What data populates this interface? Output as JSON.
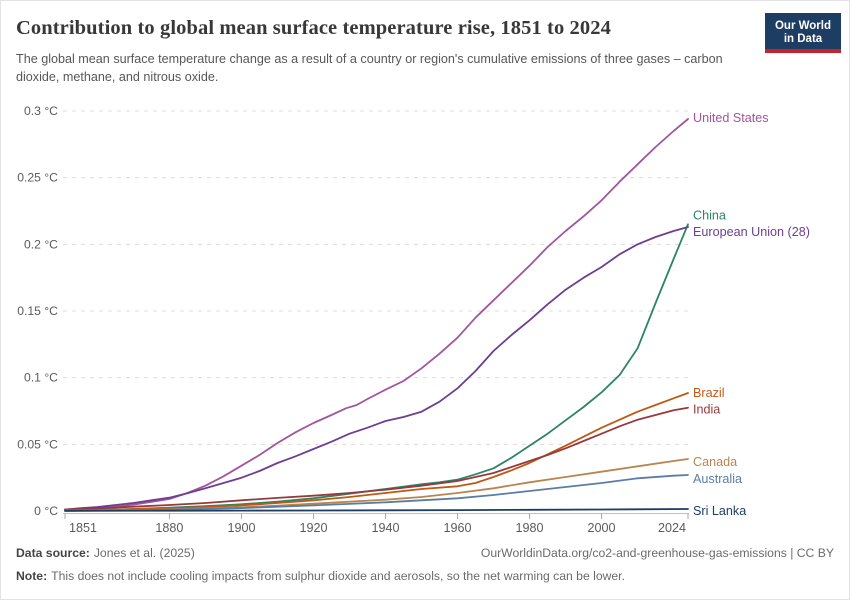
{
  "header": {
    "title": "Contribution to global mean surface temperature rise, 1851 to 2024",
    "subtitle": "The global mean surface temperature change as a result of a country or region's cumulative emissions of three gases – carbon dioxide, methane, and nitrous oxide."
  },
  "logo": {
    "line1": "Our World",
    "line2": "in Data",
    "bg_color": "#1d3d63",
    "bar_color": "#c0262d"
  },
  "chart_data": {
    "type": "line",
    "title": "Contribution to global mean surface temperature rise, 1851 to 2024",
    "xlabel": "",
    "ylabel": "",
    "unit": "°C",
    "xlim": [
      1851,
      2024
    ],
    "ylim": [
      0,
      0.3
    ],
    "grid": "horizontal-dashed",
    "legend_position": "right-of-line-ends",
    "x_ticks": [
      1851,
      1880,
      1900,
      1920,
      1940,
      1960,
      1980,
      2000,
      2024
    ],
    "y_ticks": [
      {
        "value": 0,
        "label": "0 °C"
      },
      {
        "value": 0.05,
        "label": "0.05 °C"
      },
      {
        "value": 0.1,
        "label": "0.1 °C"
      },
      {
        "value": 0.15,
        "label": "0.15 °C"
      },
      {
        "value": 0.2,
        "label": "0.2 °C"
      },
      {
        "value": 0.25,
        "label": "0.25 °C"
      },
      {
        "value": 0.3,
        "label": "0.3 °C"
      }
    ],
    "series": [
      {
        "name": "United States",
        "color": "#a2559c",
        "points": [
          [
            1851,
            0.0005
          ],
          [
            1855,
            0.0012
          ],
          [
            1860,
            0.002
          ],
          [
            1865,
            0.0032
          ],
          [
            1870,
            0.0048
          ],
          [
            1875,
            0.0068
          ],
          [
            1880,
            0.009
          ],
          [
            1885,
            0.0135
          ],
          [
            1890,
            0.019
          ],
          [
            1895,
            0.026
          ],
          [
            1900,
            0.034
          ],
          [
            1905,
            0.042
          ],
          [
            1910,
            0.051
          ],
          [
            1915,
            0.059
          ],
          [
            1920,
            0.066
          ],
          [
            1925,
            0.072
          ],
          [
            1929,
            0.077
          ],
          [
            1932,
            0.0795
          ],
          [
            1935,
            0.084
          ],
          [
            1940,
            0.091
          ],
          [
            1945,
            0.0975
          ],
          [
            1950,
            0.107
          ],
          [
            1955,
            0.118
          ],
          [
            1960,
            0.13
          ],
          [
            1965,
            0.145
          ],
          [
            1970,
            0.158
          ],
          [
            1975,
            0.171
          ],
          [
            1980,
            0.184
          ],
          [
            1985,
            0.198
          ],
          [
            1990,
            0.21
          ],
          [
            1995,
            0.221
          ],
          [
            2000,
            0.233
          ],
          [
            2005,
            0.247
          ],
          [
            2010,
            0.26
          ],
          [
            2015,
            0.273
          ],
          [
            2020,
            0.285
          ],
          [
            2024,
            0.294
          ]
        ]
      },
      {
        "name": "China",
        "color": "#2c8465",
        "points": [
          [
            1851,
            0.0003
          ],
          [
            1860,
            0.0008
          ],
          [
            1870,
            0.0015
          ],
          [
            1880,
            0.0025
          ],
          [
            1890,
            0.0036
          ],
          [
            1900,
            0.005
          ],
          [
            1910,
            0.007
          ],
          [
            1920,
            0.0095
          ],
          [
            1930,
            0.013
          ],
          [
            1940,
            0.0165
          ],
          [
            1950,
            0.02
          ],
          [
            1955,
            0.0215
          ],
          [
            1960,
            0.0235
          ],
          [
            1965,
            0.0275
          ],
          [
            1970,
            0.032
          ],
          [
            1975,
            0.04
          ],
          [
            1980,
            0.049
          ],
          [
            1985,
            0.058
          ],
          [
            1990,
            0.068
          ],
          [
            1995,
            0.078
          ],
          [
            2000,
            0.089
          ],
          [
            2005,
            0.102
          ],
          [
            2010,
            0.122
          ],
          [
            2015,
            0.156
          ],
          [
            2020,
            0.189
          ],
          [
            2024,
            0.215
          ]
        ]
      },
      {
        "name": "European Union (28)",
        "color": "#6d3e91",
        "points": [
          [
            1851,
            0.001
          ],
          [
            1855,
            0.002
          ],
          [
            1860,
            0.003
          ],
          [
            1865,
            0.0045
          ],
          [
            1870,
            0.006
          ],
          [
            1875,
            0.008
          ],
          [
            1880,
            0.01
          ],
          [
            1885,
            0.0133
          ],
          [
            1890,
            0.017
          ],
          [
            1895,
            0.021
          ],
          [
            1900,
            0.025
          ],
          [
            1905,
            0.03
          ],
          [
            1910,
            0.036
          ],
          [
            1915,
            0.041
          ],
          [
            1920,
            0.0465
          ],
          [
            1925,
            0.052
          ],
          [
            1930,
            0.058
          ],
          [
            1935,
            0.0625
          ],
          [
            1940,
            0.0675
          ],
          [
            1945,
            0.0705
          ],
          [
            1950,
            0.0745
          ],
          [
            1955,
            0.082
          ],
          [
            1960,
            0.092
          ],
          [
            1965,
            0.105
          ],
          [
            1970,
            0.12
          ],
          [
            1975,
            0.132
          ],
          [
            1980,
            0.143
          ],
          [
            1985,
            0.155
          ],
          [
            1990,
            0.166
          ],
          [
            1995,
            0.175
          ],
          [
            2000,
            0.183
          ],
          [
            2005,
            0.1925
          ],
          [
            2010,
            0.2
          ],
          [
            2015,
            0.2055
          ],
          [
            2020,
            0.21
          ],
          [
            2024,
            0.213
          ]
        ]
      },
      {
        "name": "Brazil",
        "color": "#be5915",
        "points": [
          [
            1851,
            0.0004
          ],
          [
            1860,
            0.0008
          ],
          [
            1870,
            0.0014
          ],
          [
            1880,
            0.002
          ],
          [
            1890,
            0.003
          ],
          [
            1900,
            0.0042
          ],
          [
            1910,
            0.006
          ],
          [
            1920,
            0.008
          ],
          [
            1930,
            0.0105
          ],
          [
            1940,
            0.0135
          ],
          [
            1950,
            0.0165
          ],
          [
            1960,
            0.0185
          ],
          [
            1965,
            0.021
          ],
          [
            1970,
            0.0255
          ],
          [
            1975,
            0.0305
          ],
          [
            1980,
            0.036
          ],
          [
            1985,
            0.0425
          ],
          [
            1990,
            0.049
          ],
          [
            1995,
            0.0557
          ],
          [
            2000,
            0.0625
          ],
          [
            2005,
            0.0685
          ],
          [
            2010,
            0.0745
          ],
          [
            2015,
            0.0795
          ],
          [
            2020,
            0.0845
          ],
          [
            2024,
            0.0885
          ]
        ]
      },
      {
        "name": "India",
        "color": "#973a3c",
        "points": [
          [
            1851,
            0.0012
          ],
          [
            1860,
            0.002
          ],
          [
            1870,
            0.0032
          ],
          [
            1880,
            0.0045
          ],
          [
            1890,
            0.006
          ],
          [
            1900,
            0.008
          ],
          [
            1910,
            0.0098
          ],
          [
            1920,
            0.0115
          ],
          [
            1930,
            0.0135
          ],
          [
            1940,
            0.016
          ],
          [
            1950,
            0.019
          ],
          [
            1960,
            0.0225
          ],
          [
            1970,
            0.0285
          ],
          [
            1980,
            0.0375
          ],
          [
            1985,
            0.042
          ],
          [
            1990,
            0.047
          ],
          [
            1995,
            0.0525
          ],
          [
            2000,
            0.058
          ],
          [
            2005,
            0.0635
          ],
          [
            2010,
            0.0685
          ],
          [
            2015,
            0.072
          ],
          [
            2020,
            0.0755
          ],
          [
            2024,
            0.0775
          ]
        ]
      },
      {
        "name": "Canada",
        "color": "#b8864d",
        "points": [
          [
            1851,
            0.0002
          ],
          [
            1870,
            0.0007
          ],
          [
            1880,
            0.0012
          ],
          [
            1890,
            0.002
          ],
          [
            1900,
            0.0028
          ],
          [
            1910,
            0.004
          ],
          [
            1920,
            0.0055
          ],
          [
            1930,
            0.007
          ],
          [
            1940,
            0.0085
          ],
          [
            1950,
            0.0105
          ],
          [
            1960,
            0.0135
          ],
          [
            1970,
            0.017
          ],
          [
            1980,
            0.0215
          ],
          [
            1990,
            0.0255
          ],
          [
            2000,
            0.0295
          ],
          [
            2010,
            0.0335
          ],
          [
            2020,
            0.0375
          ],
          [
            2024,
            0.039
          ]
        ]
      },
      {
        "name": "Australia",
        "color": "#5b7da5",
        "points": [
          [
            1851,
            0.0001
          ],
          [
            1870,
            0.0005
          ],
          [
            1880,
            0.0009
          ],
          [
            1890,
            0.0015
          ],
          [
            1900,
            0.0022
          ],
          [
            1910,
            0.0032
          ],
          [
            1920,
            0.0042
          ],
          [
            1930,
            0.0053
          ],
          [
            1940,
            0.0065
          ],
          [
            1950,
            0.008
          ],
          [
            1960,
            0.0095
          ],
          [
            1970,
            0.012
          ],
          [
            1980,
            0.015
          ],
          [
            1990,
            0.018
          ],
          [
            2000,
            0.021
          ],
          [
            2010,
            0.0245
          ],
          [
            2020,
            0.0265
          ],
          [
            2024,
            0.027
          ]
        ]
      },
      {
        "name": "Sri Lanka",
        "color": "#1d3d63",
        "points": [
          [
            1851,
            0.0001
          ],
          [
            1880,
            0.0002
          ],
          [
            1900,
            0.0003
          ],
          [
            1920,
            0.0004
          ],
          [
            1940,
            0.0005
          ],
          [
            1960,
            0.0007
          ],
          [
            1980,
            0.0009
          ],
          [
            2000,
            0.0011
          ],
          [
            2024,
            0.0015
          ]
        ]
      }
    ]
  },
  "footer": {
    "source_label": "Data source:",
    "source_value": "Jones et al. (2025)",
    "credit": "OurWorldinData.org/co2-and-greenhouse-gas-emissions | CC BY",
    "note_label": "Note:",
    "note_value": "This does not include cooling impacts from sulphur dioxide and aerosols, so the net warming can be lower."
  }
}
